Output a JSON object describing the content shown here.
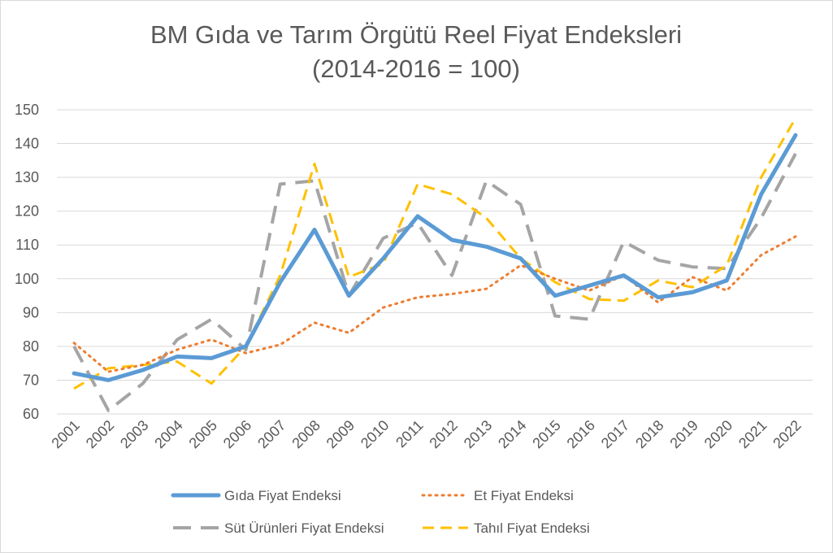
{
  "chart_data": {
    "type": "line",
    "title": "BM Gıda ve Tarım Örgütü Reel Fiyat Endeksleri",
    "subtitle": "(2014-2016 = 100)",
    "xlabel": "",
    "ylabel": "",
    "ylim": [
      60,
      150
    ],
    "yticks": [
      60,
      70,
      80,
      90,
      100,
      110,
      120,
      130,
      140,
      150
    ],
    "grid": true,
    "legend_position": "bottom",
    "categories": [
      "2001",
      "2002",
      "2003",
      "2004",
      "2005",
      "2006",
      "2007",
      "2008",
      "2009",
      "2010",
      "2011",
      "2012",
      "2013",
      "2014",
      "2015",
      "2016",
      "2017",
      "2018",
      "2019",
      "2020",
      "2021",
      "2022"
    ],
    "series": [
      {
        "name": "Gıda Fiyat Endeksi",
        "color": "#5b9bd5",
        "style": "solid",
        "values": [
          72,
          70,
          73,
          77,
          76.5,
          80,
          99,
          114.5,
          95,
          106,
          118.5,
          111.5,
          109.5,
          106,
          95,
          98,
          101,
          94.5,
          96,
          99.5,
          125,
          142.5
        ]
      },
      {
        "name": "Et Fiyat Endeksi",
        "color": "#ed7d31",
        "style": "dotted",
        "values": [
          81,
          72.5,
          74.5,
          79,
          82,
          78,
          80.5,
          87,
          84,
          91.5,
          94.5,
          95.5,
          97,
          104,
          100,
          96.5,
          101,
          93,
          100.5,
          96.5,
          107,
          112.5
        ]
      },
      {
        "name": "Süt Ürünleri Fiyat Endeksi",
        "color": "#a5a5a5",
        "style": "dashed",
        "values": [
          80,
          61,
          69,
          82,
          88,
          79,
          128,
          129,
          95,
          112,
          116.5,
          101,
          129,
          122,
          89,
          88,
          111,
          105.5,
          103.5,
          103,
          118,
          137
        ]
      },
      {
        "name": "Tahıl Fiyat Endeksi",
        "color": "#ffc000",
        "style": "dashed",
        "values": [
          67.5,
          73.5,
          74.5,
          75.5,
          69,
          80,
          101,
          134,
          100.5,
          104.5,
          128,
          125,
          118,
          106,
          99,
          94,
          93.5,
          99.5,
          97.5,
          104,
          130,
          147.5
        ]
      }
    ]
  }
}
